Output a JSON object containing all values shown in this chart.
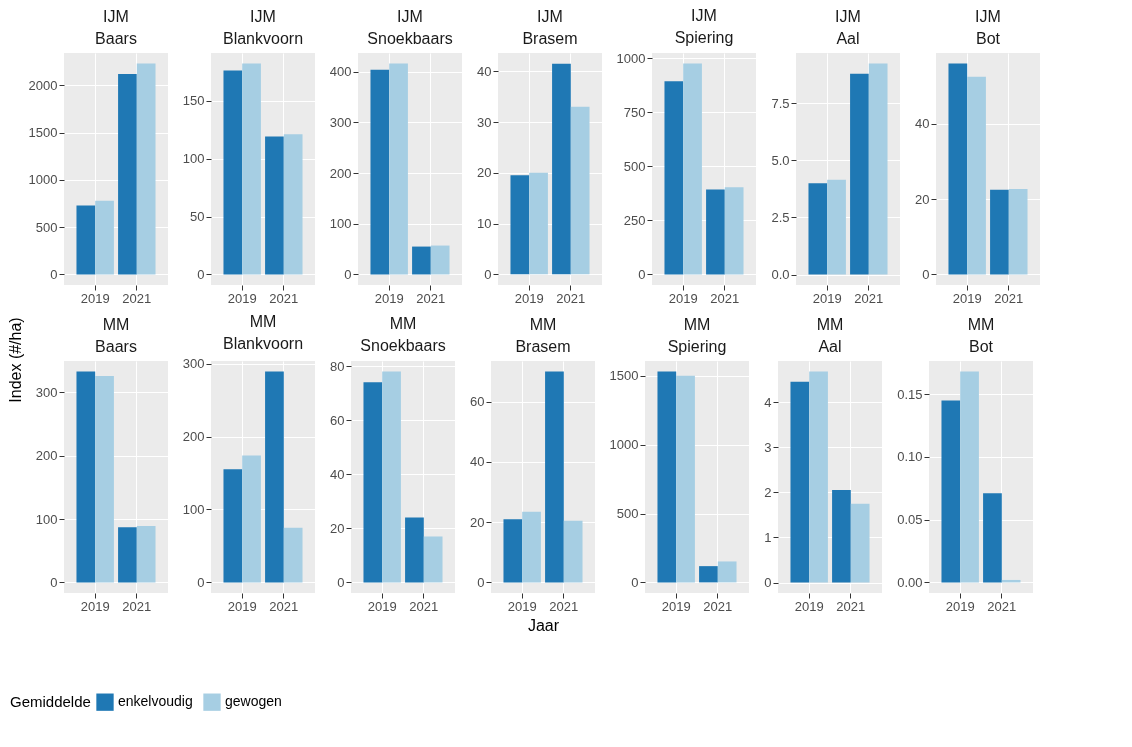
{
  "chart_data": [
    {
      "type": "bar",
      "title": "IJM\nBaars",
      "legend": "bottom",
      "grid": true,
      "categories": [
        "2019",
        "2021"
      ],
      "series": [
        {
          "name": "enkelvoudig",
          "color": "#1f78b4",
          "values": [
            730,
            2120
          ]
        },
        {
          "name": "gewogen",
          "color": "#a6cee3",
          "values": [
            780,
            2230
          ]
        }
      ],
      "ylim": [
        -112,
        2342
      ],
      "yticks": [
        0,
        500,
        1000,
        1500,
        2000
      ]
    },
    {
      "type": "bar",
      "title": "IJM\nBlankvoorn",
      "legend": "bottom",
      "grid": true,
      "categories": [
        "2019",
        "2021"
      ],
      "series": [
        {
          "name": "enkelvoudig",
          "color": "#1f78b4",
          "values": [
            176,
            119
          ]
        },
        {
          "name": "gewogen",
          "color": "#a6cee3",
          "values": [
            182,
            121
          ]
        }
      ],
      "ylim": [
        -9.1,
        191.1
      ],
      "yticks": [
        0,
        50,
        100,
        150
      ]
    },
    {
      "type": "bar",
      "title": "IJM\nSnoekbaars",
      "legend": "bottom",
      "grid": true,
      "categories": [
        "2019",
        "2021"
      ],
      "series": [
        {
          "name": "enkelvoudig",
          "color": "#1f78b4",
          "values": [
            404,
            55
          ]
        },
        {
          "name": "gewogen",
          "color": "#a6cee3",
          "values": [
            416,
            57
          ]
        }
      ],
      "ylim": [
        -20.8,
        436.8
      ],
      "yticks": [
        0,
        100,
        200,
        300,
        400
      ]
    },
    {
      "type": "bar",
      "title": "IJM\nBrasem",
      "legend": "bottom",
      "grid": true,
      "categories": [
        "2019",
        "2021"
      ],
      "series": [
        {
          "name": "enkelvoudig",
          "color": "#1f78b4",
          "values": [
            19.5,
            41.5
          ]
        },
        {
          "name": "gewogen",
          "color": "#a6cee3",
          "values": [
            20,
            33
          ]
        }
      ],
      "ylim": [
        -2.1,
        43.6
      ],
      "yticks": [
        0,
        10,
        20,
        30,
        40
      ]
    },
    {
      "type": "bar",
      "title": "IJM\nSpiering",
      "legend": "bottom",
      "grid": true,
      "categories": [
        "2019",
        "2021"
      ],
      "series": [
        {
          "name": "enkelvoudig",
          "color": "#1f78b4",
          "values": [
            893,
            393
          ]
        },
        {
          "name": "gewogen",
          "color": "#a6cee3",
          "values": [
            975,
            403
          ]
        }
      ],
      "ylim": [
        -49,
        1024
      ],
      "yticks": [
        0,
        250,
        500,
        750,
        1000
      ]
    },
    {
      "type": "bar",
      "title": "IJM\nAal",
      "legend": "bottom",
      "grid": true,
      "categories": [
        "2019",
        "2021"
      ],
      "series": [
        {
          "name": "enkelvoudig",
          "color": "#1f78b4",
          "values": [
            4.0,
            8.8
          ]
        },
        {
          "name": "gewogen",
          "color": "#a6cee3",
          "values": [
            4.15,
            9.25
          ]
        }
      ],
      "ylim": [
        -0.46,
        9.71
      ],
      "yticks": [
        {
          "value": 0,
          "label": "0.0"
        },
        {
          "value": 2.5,
          "label": "2.5"
        },
        {
          "value": 5,
          "label": "5.0"
        },
        {
          "value": 7.5,
          "label": "7.5"
        }
      ]
    },
    {
      "type": "bar",
      "title": "IJM\nBot",
      "legend": "bottom",
      "grid": true,
      "categories": [
        "2019",
        "2021"
      ],
      "series": [
        {
          "name": "enkelvoudig",
          "color": "#1f78b4",
          "values": [
            56,
            22.5
          ]
        },
        {
          "name": "gewogen",
          "color": "#a6cee3",
          "values": [
            52.5,
            22.7
          ]
        }
      ],
      "ylim": [
        -2.8,
        58.8
      ],
      "yticks": [
        0,
        20,
        40
      ]
    },
    {
      "type": "bar",
      "title": "MM\nBaars",
      "ylabel": "Index (#/ha)",
      "legend": "bottom",
      "grid": true,
      "categories": [
        "2019",
        "2021"
      ],
      "series": [
        {
          "name": "enkelvoudig",
          "color": "#1f78b4",
          "values": [
            333,
            87
          ]
        },
        {
          "name": "gewogen",
          "color": "#a6cee3",
          "values": [
            326,
            89
          ]
        }
      ],
      "ylim": [
        -16.7,
        349.7
      ],
      "yticks": [
        0,
        100,
        200,
        300
      ]
    },
    {
      "type": "bar",
      "title": "MM\nBlankvoorn",
      "legend": "bottom",
      "grid": true,
      "categories": [
        "2019",
        "2021"
      ],
      "series": [
        {
          "name": "enkelvoudig",
          "color": "#1f78b4",
          "values": [
            155,
            289
          ]
        },
        {
          "name": "gewogen",
          "color": "#a6cee3",
          "values": [
            174,
            75
          ]
        }
      ],
      "ylim": [
        -14.5,
        303.5
      ],
      "yticks": [
        0,
        100,
        200,
        300
      ]
    },
    {
      "type": "bar",
      "title": "MM\nSnoekbaars",
      "legend": "bottom",
      "grid": true,
      "categories": [
        "2019",
        "2021"
      ],
      "series": [
        {
          "name": "enkelvoudig",
          "color": "#1f78b4",
          "values": [
            74,
            24
          ]
        },
        {
          "name": "gewogen",
          "color": "#a6cee3",
          "values": [
            78,
            17
          ]
        }
      ],
      "ylim": [
        -3.9,
        81.9
      ],
      "yticks": [
        0,
        20,
        40,
        60,
        80
      ]
    },
    {
      "type": "bar",
      "title": "MM\nBrasem",
      "xlabel": "Jaar",
      "legend_title": "Gemiddelde",
      "legend": "bottom",
      "grid": true,
      "categories": [
        "2019",
        "2021"
      ],
      "series": [
        {
          "name": "enkelvoudig",
          "color": "#1f78b4",
          "values": [
            21,
            70
          ]
        },
        {
          "name": "gewogen",
          "color": "#a6cee3",
          "values": [
            23.5,
            20.5
          ]
        }
      ],
      "ylim": [
        -3.5,
        73.5
      ],
      "yticks": [
        0,
        20,
        40,
        60
      ]
    },
    {
      "type": "bar",
      "title": "MM\nSpiering",
      "legend": "bottom",
      "grid": true,
      "categories": [
        "2019",
        "2021"
      ],
      "series": [
        {
          "name": "enkelvoudig",
          "color": "#1f78b4",
          "values": [
            1530,
            118
          ]
        },
        {
          "name": "gewogen",
          "color": "#a6cee3",
          "values": [
            1500,
            152
          ]
        }
      ],
      "ylim": [
        -77,
        1607
      ],
      "yticks": [
        0,
        500,
        1000,
        1500
      ]
    },
    {
      "type": "bar",
      "title": "MM\nAal",
      "legend": "bottom",
      "grid": true,
      "categories": [
        "2019",
        "2021"
      ],
      "series": [
        {
          "name": "enkelvoudig",
          "color": "#1f78b4",
          "values": [
            4.45,
            2.05
          ]
        },
        {
          "name": "gewogen",
          "color": "#a6cee3",
          "values": [
            4.68,
            1.75
          ]
        }
      ],
      "ylim": [
        -0.23,
        4.91
      ],
      "yticks": [
        0,
        1,
        2,
        3,
        4
      ]
    },
    {
      "type": "bar",
      "title": "MM\nBot",
      "legend": "bottom",
      "grid": true,
      "categories": [
        "2019",
        "2021"
      ],
      "series": [
        {
          "name": "enkelvoudig",
          "color": "#1f78b4",
          "values": [
            0.145,
            0.071
          ]
        },
        {
          "name": "gewogen",
          "color": "#a6cee3",
          "values": [
            0.168,
            0.002
          ]
        }
      ],
      "ylim": [
        -0.0084,
        0.1764
      ],
      "yticks": [
        {
          "value": 0,
          "label": "0.00"
        },
        {
          "value": 0.05,
          "label": "0.05"
        },
        {
          "value": 0.1,
          "label": "0.10"
        },
        {
          "value": 0.15,
          "label": "0.15"
        }
      ]
    }
  ]
}
